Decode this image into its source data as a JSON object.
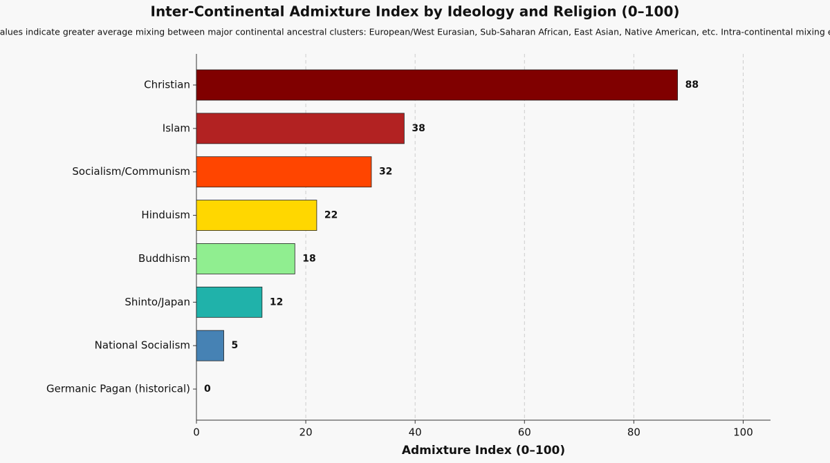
{
  "chart_data": {
    "type": "barh",
    "title": "Inter-Continental Admixture Index by Ideology and Religion (0–100)",
    "subtitle": "(Higher values indicate greater average mixing between major continental ancestral clusters: European/West Eurasian, Sub-Saharan African, East Asian, Native American, etc. Intra-continental mixing excluded)",
    "x_label": "Admixture Index (0–100)",
    "categories": [
      "Christian",
      "Islam",
      "Socialism/Communism",
      "Hinduism",
      "Buddhism",
      "Shinto/Japan",
      "National Socialism",
      "Germanic Pagan (historical)"
    ],
    "values": [
      88,
      38,
      32,
      22,
      18,
      12,
      5,
      0
    ],
    "colors": [
      "#800000",
      "#b22222",
      "#ff4500",
      "#ffd700",
      "#90ee90",
      "#20b2aa",
      "#4682b4",
      "#808080"
    ],
    "xlim": [
      0,
      105
    ],
    "xticks": [
      0,
      20,
      40,
      60,
      80,
      100
    ],
    "grid": true
  }
}
